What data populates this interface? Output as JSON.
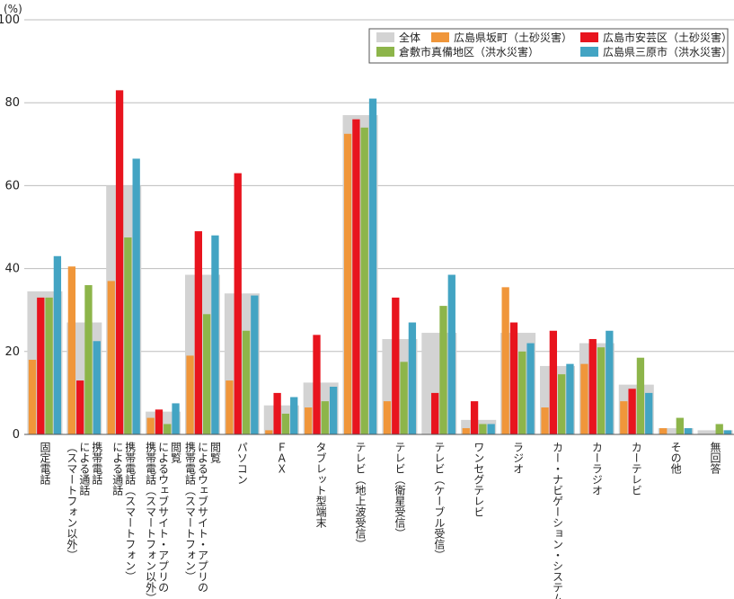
{
  "chart_data": {
    "type": "bar",
    "unit": "(%)",
    "ylim": [
      0,
      100
    ],
    "yticks": [
      0,
      20,
      40,
      60,
      80,
      100
    ],
    "legend_position": "top-right",
    "categories": [
      "固定電話",
      "携帯電話（スマートフォン以外）による通話",
      "携帯電話（スマートフォン）による通話",
      "携帯電話（スマートフォン以外）によるウェブサイト・アプリの閲覧",
      "携帯電話（スマートフォン）によるウェブサイト・アプリの閲覧",
      "パソコン",
      "ＦＡＸ",
      "タブレット型端末",
      "テレビ（地上波受信）",
      "テレビ（衛星受信）",
      "テレビ（ケーブル受信）",
      "ワンセグテレビ",
      "ラジオ",
      "カー・ナビゲーション・システム",
      "カーラジオ",
      "カーテレビ",
      "その他",
      "無回答"
    ],
    "category_lines": [
      [
        "固定電話"
      ],
      [
        "携帯電話",
        "による通話",
        "（スマートフォン以外）"
      ],
      [
        "携帯電話（スマートフォン）",
        "による通話"
      ],
      [
        "閲覧",
        "によるウェブサイト・アプリの",
        "携帯電話（スマートフォン以外）"
      ],
      [
        "閲覧",
        "によるウェブサイト・アプリの",
        "携帯電話（スマートフォン）"
      ],
      [
        "パソコン"
      ],
      [
        "ＦＡＸ"
      ],
      [
        "タブレット型端末"
      ],
      [
        "テレビ（地上波受信）"
      ],
      [
        "テレビ（衛星受信）"
      ],
      [
        "テレビ（ケーブル受信）"
      ],
      [
        "ワンセグテレビ"
      ],
      [
        "ラジオ"
      ],
      [
        "カー・ナビゲーション・システム"
      ],
      [
        "カーラジオ"
      ],
      [
        "カーテレビ"
      ],
      [
        "その他"
      ],
      [
        "無回答"
      ]
    ],
    "total": {
      "name": "全体",
      "color": "#d3d3d3",
      "values": [
        34.5,
        27,
        60,
        5.5,
        38.5,
        34,
        7,
        12.5,
        77,
        23,
        24.5,
        3.5,
        24.5,
        16.5,
        22,
        12,
        1.5,
        1
      ]
    },
    "series": [
      {
        "name": "広島県坂町（土砂災害）",
        "color": "#f0963a",
        "values": [
          18,
          40.5,
          37,
          4,
          19,
          13,
          1,
          6.5,
          72.5,
          8,
          0,
          1.5,
          35.5,
          6.5,
          17,
          8,
          1.5,
          0
        ]
      },
      {
        "name": "広島市安芸区（土砂災害）",
        "color": "#e8141e",
        "values": [
          33,
          13,
          83,
          6,
          49,
          63,
          10,
          24,
          76,
          33,
          10,
          8,
          27,
          25,
          23,
          11,
          0,
          0
        ]
      },
      {
        "name": "倉敷市真備地区（洪水災害）",
        "color": "#8db54a",
        "values": [
          33,
          36,
          47.5,
          2.5,
          29,
          25,
          5,
          8,
          74,
          17.5,
          31,
          2.5,
          20,
          14.5,
          21,
          18.5,
          4,
          2.5
        ]
      },
      {
        "name": "広島県三原市（洪水災害）",
        "color": "#43a4c3",
        "values": [
          43,
          22.5,
          66.5,
          7.5,
          48,
          33.5,
          9,
          11.5,
          81,
          27,
          38.5,
          2.5,
          22,
          17,
          25,
          10,
          1.5,
          1
        ]
      }
    ]
  }
}
